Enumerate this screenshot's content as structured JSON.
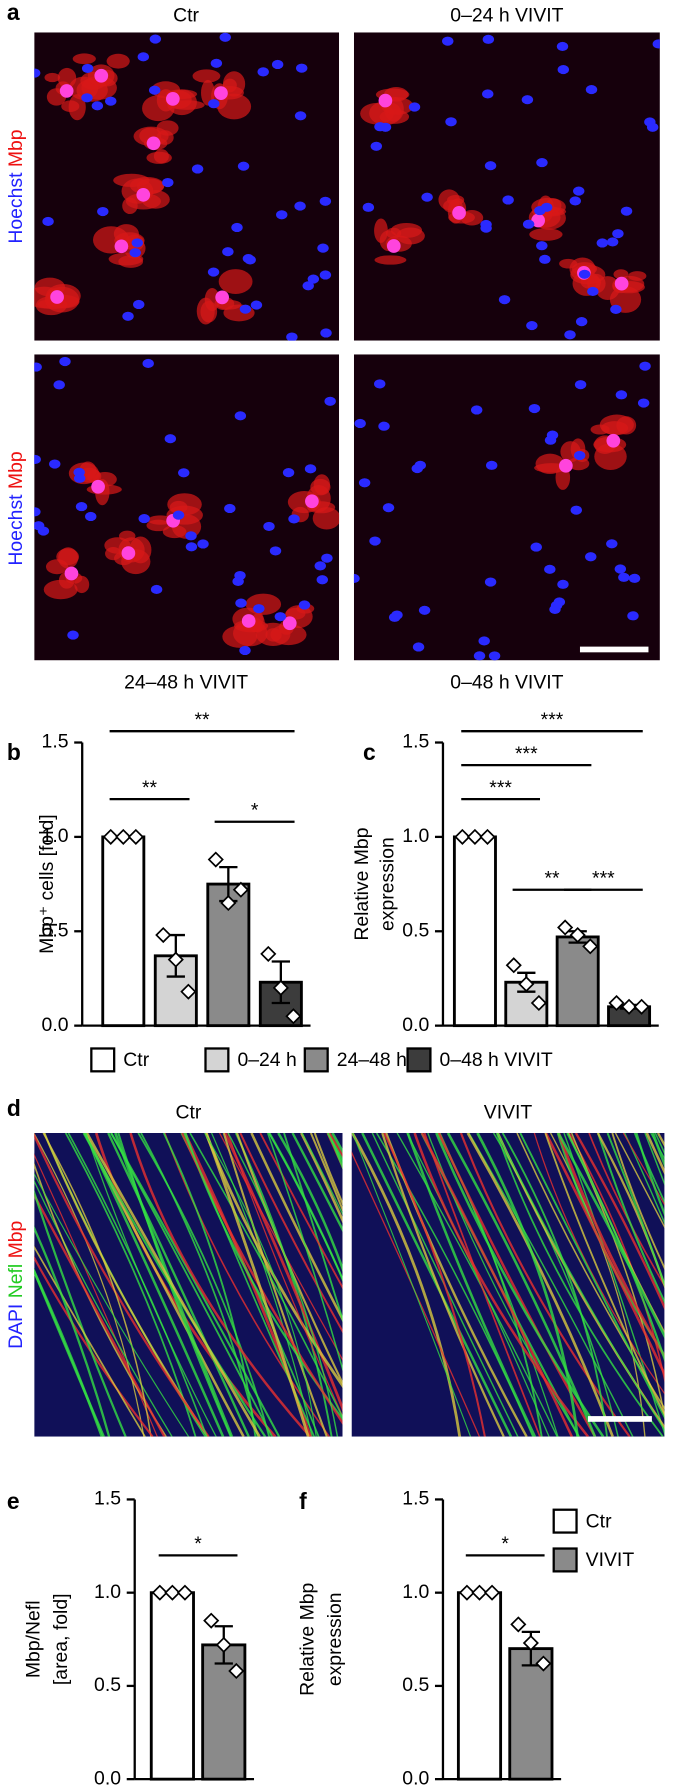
{
  "panel_a": {
    "label": "a",
    "titles": [
      "Ctr",
      "0–24 h VIVIT"
    ],
    "captions": [
      "24–48 h VIVIT",
      "0–48 h VIVIT"
    ],
    "channel_labels": [
      [
        "Hoechst",
        "Mbp"
      ],
      [
        "Hoechst",
        "Mbp"
      ]
    ]
  },
  "panel_d": {
    "label": "d",
    "titles": [
      "Ctr",
      "VIVIT"
    ],
    "channel_labels": [
      "DAPI",
      "Nefl",
      "Mbp"
    ]
  },
  "chart_data": [
    {
      "type": "bar",
      "panel_label": "b",
      "ylabel": [
        "Mbp⁺ cells [fold]"
      ],
      "categories": [
        "Ctr",
        "0–24 h",
        "24–48 h",
        "0–48 h VIVIT"
      ],
      "colors": [
        "#ffffff",
        "#d4d4d4",
        "#8a8a8a",
        "#3c3c3c"
      ],
      "values": [
        1.0,
        0.37,
        0.75,
        0.23
      ],
      "errors": [
        0,
        0.11,
        0.09,
        0.11
      ],
      "points": [
        [
          1,
          1,
          1
        ],
        [
          0.48,
          0.35,
          0.18
        ],
        [
          0.88,
          0.65,
          0.72
        ],
        [
          0.38,
          0.2,
          0.05
        ]
      ],
      "ylim": [
        0,
        1.5
      ],
      "yticks": [
        {
          "value": 0,
          "label": "0.0"
        },
        {
          "value": 0.5,
          "label": "0.5"
        },
        {
          "value": 1,
          "label": "1.0"
        },
        {
          "value": 1.5,
          "label": "1.5"
        }
      ],
      "significance": [
        {
          "bars": [
            0,
            1
          ],
          "label": "**"
        },
        {
          "bars": [
            2,
            3
          ],
          "label": "*"
        },
        {
          "bars": [
            0,
            3
          ],
          "label": "**"
        }
      ]
    },
    {
      "type": "bar",
      "panel_label": "c",
      "ylabel": [
        "Relative Mbp",
        "expression"
      ],
      "colors": [
        "#ffffff",
        "#d4d4d4",
        "#8a8a8a",
        "#3c3c3c"
      ],
      "values": [
        1.0,
        0.23,
        0.47,
        0.1
      ],
      "errors": [
        0,
        0.05,
        0.03,
        0.01
      ],
      "points": [
        [
          1,
          1,
          1
        ],
        [
          0.32,
          0.22,
          0.12
        ],
        [
          0.52,
          0.48,
          0.42
        ],
        [
          0.12,
          0.1,
          0.1
        ]
      ],
      "ylim": [
        0,
        1.5
      ],
      "yticks": [
        {
          "value": 0,
          "label": "0.0"
        },
        {
          "value": 0.5,
          "label": "0.5"
        },
        {
          "value": 1,
          "label": "1.0"
        },
        {
          "value": 1.5,
          "label": "1.5"
        }
      ],
      "significance": [
        {
          "bars": [
            0,
            1
          ],
          "label": "***"
        },
        {
          "bars": [
            0,
            2
          ],
          "label": "***"
        },
        {
          "bars": [
            0,
            3
          ],
          "label": "***"
        },
        {
          "bars": [
            1,
            2
          ],
          "label": "**"
        },
        {
          "bars": [
            2,
            3
          ],
          "label": "***"
        }
      ]
    },
    {
      "type": "bar",
      "panel_label": "e",
      "ylabel": [
        "Mbp/Nefl",
        "[area, fold]"
      ],
      "colors": [
        "#ffffff",
        "#8a8a8a"
      ],
      "values": [
        1.0,
        0.72
      ],
      "errors": [
        0,
        0.1
      ],
      "points": [
        [
          1,
          1,
          1
        ],
        [
          0.85,
          0.72,
          0.58
        ]
      ],
      "ylim": [
        0,
        1.5
      ],
      "yticks": [
        {
          "value": 0,
          "label": "0.0"
        },
        {
          "value": 0.5,
          "label": "0.5"
        },
        {
          "value": 1,
          "label": "1.0"
        },
        {
          "value": 1.5,
          "label": "1.5"
        }
      ],
      "significance": [
        {
          "bars": [
            0,
            1
          ],
          "label": "*"
        }
      ]
    },
    {
      "type": "bar",
      "panel_label": "f",
      "ylabel": [
        "Relative Mbp",
        "expression"
      ],
      "categories": [
        "Ctr",
        "VIVIT"
      ],
      "colors": [
        "#ffffff",
        "#8a8a8a"
      ],
      "values": [
        1.0,
        0.7
      ],
      "errors": [
        0,
        0.09
      ],
      "points": [
        [
          1,
          1,
          1
        ],
        [
          0.83,
          0.73,
          0.62
        ]
      ],
      "ylim": [
        0,
        1.5
      ],
      "yticks": [
        {
          "value": 0,
          "label": "0.0"
        },
        {
          "value": 0.5,
          "label": "0.5"
        },
        {
          "value": 1,
          "label": "1.0"
        },
        {
          "value": 1.5,
          "label": "1.5"
        }
      ],
      "significance": [
        {
          "bars": [
            0,
            1
          ],
          "label": "*"
        }
      ]
    }
  ]
}
